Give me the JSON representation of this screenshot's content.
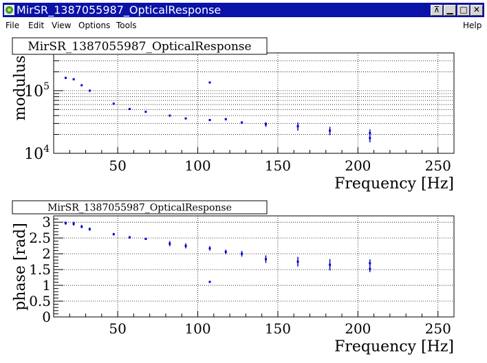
{
  "window": {
    "title": "MirSR_1387055987_OpticalResponse",
    "buttons": [
      "pin",
      "minimize",
      "maximize",
      "close"
    ]
  },
  "menu": {
    "file": "File",
    "edit": "Edit",
    "view": "View",
    "options": "Options",
    "tools": "Tools",
    "help": "Help"
  },
  "colors": {
    "marker": "#0000cc",
    "titlebar": "#0a12a8"
  },
  "chart_data": [
    {
      "type": "scatter",
      "title": "MirSR_1387055987_OpticalResponse",
      "xlabel": "Frequency [Hz]",
      "ylabel": "modulus",
      "yscale": "log",
      "xlim": [
        10,
        260
      ],
      "ylim": [
        10000,
        400000
      ],
      "xticks": [
        50,
        100,
        150,
        200,
        250
      ],
      "yticks": [
        {
          "value": 10000,
          "base": "10",
          "exp": "4"
        },
        {
          "value": 100000,
          "base": "10",
          "exp": "5"
        }
      ],
      "grid": true,
      "points": [
        {
          "x": 17.5,
          "y": 160000,
          "err": 6000
        },
        {
          "x": 22.5,
          "y": 152000,
          "err": 5000
        },
        {
          "x": 27.5,
          "y": 122000,
          "err": 4000
        },
        {
          "x": 32.5,
          "y": 100000,
          "err": 3000
        },
        {
          "x": 47.5,
          "y": 62000,
          "err": 2000
        },
        {
          "x": 57.5,
          "y": 51000,
          "err": 1500
        },
        {
          "x": 67.5,
          "y": 46000,
          "err": 1500
        },
        {
          "x": 82.5,
          "y": 40000,
          "err": 1200
        },
        {
          "x": 92.5,
          "y": 36000,
          "err": 1200
        },
        {
          "x": 107.5,
          "y": 135000,
          "err": 3000
        },
        {
          "x": 107.5,
          "y": 34000,
          "err": 1200
        },
        {
          "x": 117.5,
          "y": 35000,
          "err": 1500
        },
        {
          "x": 127.5,
          "y": 31000,
          "err": 1500
        },
        {
          "x": 142.5,
          "y": 29000,
          "err": 2500
        },
        {
          "x": 162.5,
          "y": 27000,
          "err": 4000
        },
        {
          "x": 182.5,
          "y": 23000,
          "err": 3500
        },
        {
          "x": 207.5,
          "y": 21000,
          "err": 3000
        },
        {
          "x": 207.5,
          "y": 17500,
          "err": 2500
        }
      ]
    },
    {
      "type": "scatter",
      "title": "MirSR_1387055987_OpticalResponse",
      "xlabel": "Frequency [Hz]",
      "ylabel": "phase [rad]",
      "xlim": [
        10,
        260
      ],
      "ylim": [
        0,
        3.2
      ],
      "xticks": [
        50,
        100,
        150,
        200,
        250
      ],
      "yticks": [
        "0",
        "0.5",
        "1",
        "1.5",
        "2",
        "2.5",
        "3"
      ],
      "grid": true,
      "points": [
        {
          "x": 17.5,
          "y": 2.97,
          "err": 0.05
        },
        {
          "x": 22.5,
          "y": 2.95,
          "err": 0.06
        },
        {
          "x": 27.5,
          "y": 2.86,
          "err": 0.05
        },
        {
          "x": 32.5,
          "y": 2.78,
          "err": 0.05
        },
        {
          "x": 47.5,
          "y": 2.62,
          "err": 0.04
        },
        {
          "x": 57.5,
          "y": 2.52,
          "err": 0.04
        },
        {
          "x": 67.5,
          "y": 2.47,
          "err": 0.03
        },
        {
          "x": 82.5,
          "y": 2.32,
          "err": 0.08
        },
        {
          "x": 92.5,
          "y": 2.25,
          "err": 0.08
        },
        {
          "x": 107.5,
          "y": 2.17,
          "err": 0.07
        },
        {
          "x": 107.5,
          "y": 1.11,
          "err": 0.03
        },
        {
          "x": 117.5,
          "y": 2.06,
          "err": 0.07
        },
        {
          "x": 127.5,
          "y": 2.0,
          "err": 0.09
        },
        {
          "x": 142.5,
          "y": 1.83,
          "err": 0.12
        },
        {
          "x": 162.5,
          "y": 1.75,
          "err": 0.15
        },
        {
          "x": 182.5,
          "y": 1.65,
          "err": 0.18
        },
        {
          "x": 207.5,
          "y": 1.7,
          "err": 0.12
        },
        {
          "x": 207.5,
          "y": 1.52,
          "err": 0.1
        }
      ]
    }
  ]
}
